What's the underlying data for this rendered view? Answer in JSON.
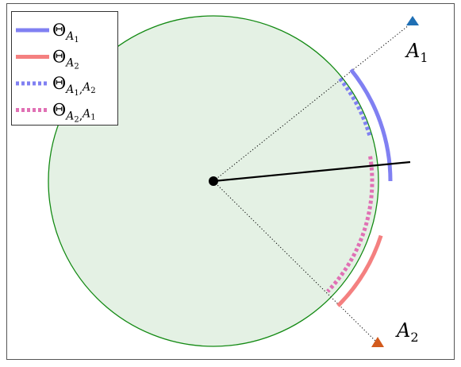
{
  "legend": [
    {
      "symbol": "Θ",
      "subscript": [
        "A",
        "1"
      ]
    },
    {
      "symbol": "Θ",
      "subscript": [
        "A",
        "2"
      ]
    },
    {
      "symbol": "Θ",
      "subscript": [
        "A",
        "1",
        ",",
        "A",
        "2"
      ]
    },
    {
      "symbol": "Θ",
      "subscript": [
        "A",
        "2",
        ",",
        "A",
        "1"
      ]
    }
  ],
  "points": [
    {
      "letter": "A",
      "index": "1"
    },
    {
      "letter": "A",
      "index": "2"
    }
  ]
}
